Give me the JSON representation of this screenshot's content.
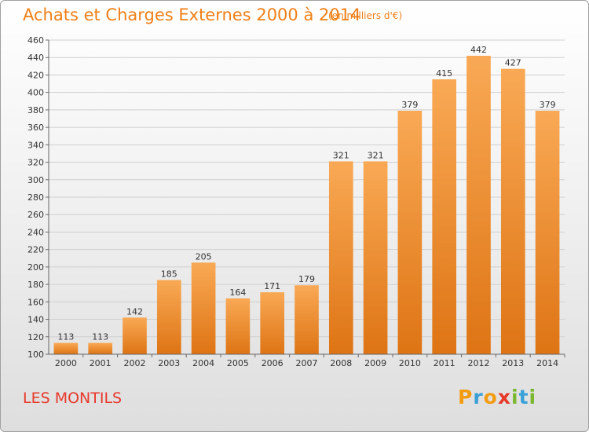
{
  "title": "Achats et Charges Externes 2000 à 2014",
  "subtitle": "(en milliers d'€)",
  "commune": "LES MONTILS",
  "logo": {
    "letters": [
      "P",
      "r",
      "o",
      "x",
      "i",
      "t",
      "i"
    ],
    "colors": [
      "#f39c12",
      "#3aa0d8",
      "#f39c12",
      "#e8382a",
      "#7cb82f",
      "#3aa0d8",
      "#7cb82f"
    ]
  },
  "colors": {
    "accent": "#f07f16",
    "bar_top": "#f9a955",
    "bar_bottom": "#de7414",
    "commune_text": "#e8382a"
  },
  "chart_data": {
    "type": "bar",
    "title": "Achats et Charges Externes 2000 à 2014",
    "subtitle": "(en milliers d'€)",
    "categories": [
      "2000",
      "2001",
      "2002",
      "2003",
      "2004",
      "2005",
      "2006",
      "2007",
      "2008",
      "2009",
      "2010",
      "2011",
      "2012",
      "2013",
      "2014"
    ],
    "values": [
      113,
      113,
      142,
      185,
      205,
      164,
      171,
      179,
      321,
      321,
      379,
      415,
      442,
      427,
      379
    ],
    "value_labels": [
      "113",
      "113",
      "142",
      "185",
      "205",
      "164",
      "171",
      "179",
      "321",
      "321",
      "379",
      "415",
      "442",
      "427",
      "379"
    ],
    "ylim": [
      100,
      460
    ],
    "yticks": [
      100,
      120,
      140,
      160,
      180,
      200,
      220,
      240,
      260,
      280,
      300,
      320,
      340,
      360,
      380,
      400,
      420,
      440,
      460
    ],
    "ytick_labels": [
      "100",
      "120",
      "140",
      "160",
      "180",
      "200",
      "220",
      "240",
      "260",
      "280",
      "300",
      "320",
      "340",
      "360",
      "380",
      "400",
      "420",
      "440",
      "460"
    ],
    "grid": true,
    "legend": "none"
  }
}
